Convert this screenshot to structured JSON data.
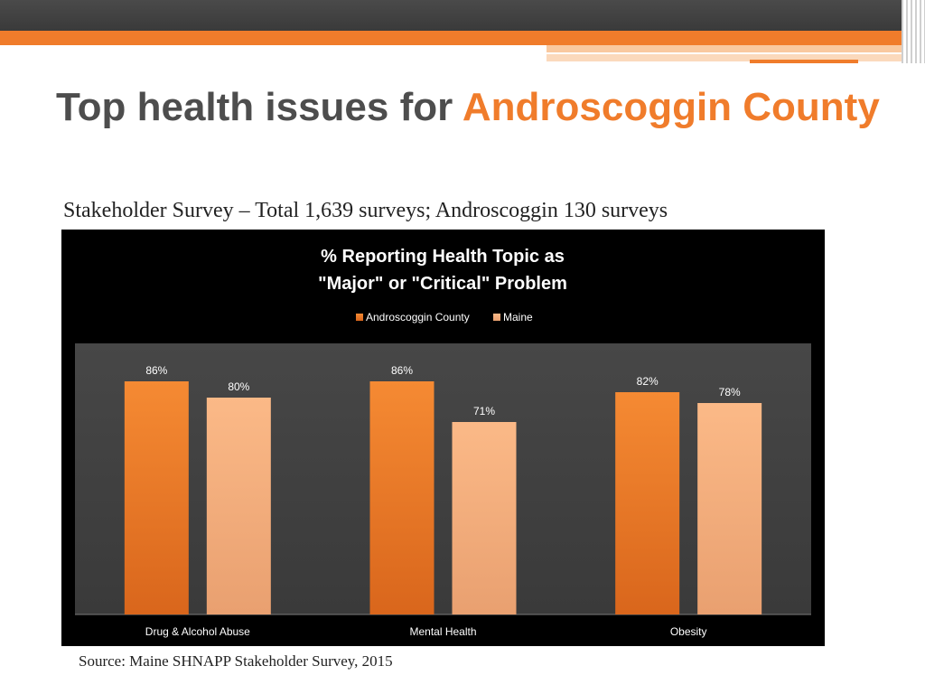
{
  "slide": {
    "title_main": "Top health issues for ",
    "title_accent": "Androscoggin County",
    "subtitle": "Stakeholder Survey – Total 1,639 surveys;  Androscoggin 130 surveys",
    "source": "Source: Maine SHNAPP Stakeholder Survey, 2015"
  },
  "colors": {
    "accent": "#f07c2b",
    "series1": "#f07c2b",
    "series2": "#f9b07f",
    "plot_bg": "#3f3f3f",
    "chart_bg": "#000000"
  },
  "chart_data": {
    "type": "bar",
    "title_line1": "% Reporting Health Topic as",
    "title_line2": "\"Major\" or \"Critical\" Problem",
    "categories": [
      "Drug & Alcohol Abuse",
      "Mental Health",
      "Obesity"
    ],
    "series": [
      {
        "name": "Androscoggin County",
        "values": [
          86,
          86,
          82
        ],
        "labels": [
          "86%",
          "86%",
          "82%"
        ]
      },
      {
        "name": "Maine",
        "values": [
          80,
          71,
          78
        ],
        "labels": [
          "80%",
          "71%",
          "78%"
        ]
      }
    ],
    "ylim": [
      0,
      100
    ],
    "legend": "top",
    "grid": false
  }
}
